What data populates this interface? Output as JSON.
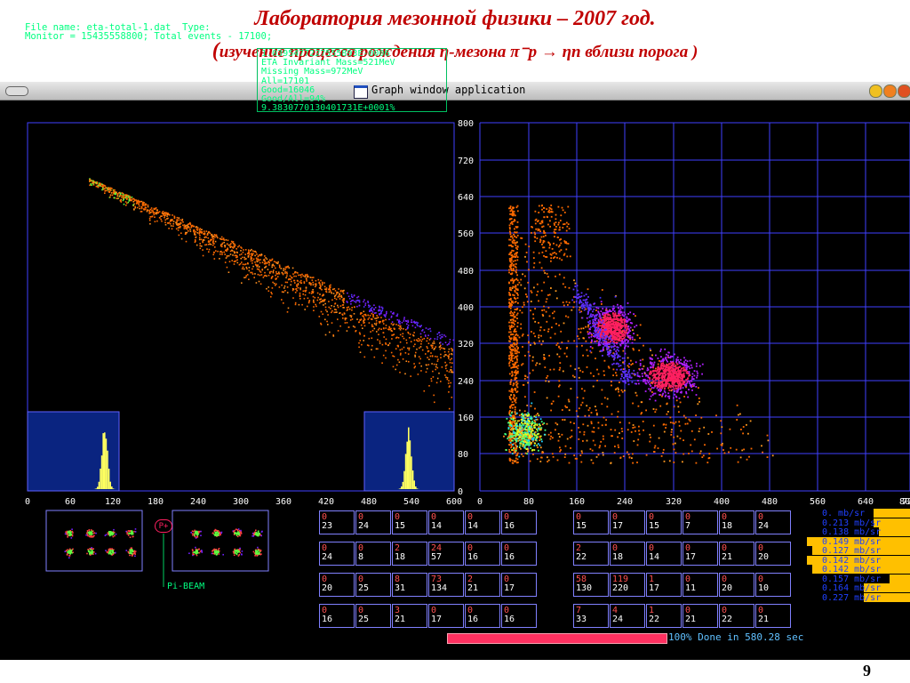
{
  "slide": {
    "title": "Лаборатория мезонной физики – 2007 год.",
    "subtitle_open": "(",
    "subtitle": "изучение  процесса  рождения  η-мезона  π⁻p → ηn  вблизи  порога )",
    "page_number": "9"
  },
  "window": {
    "title": "Graph window application"
  },
  "header_info": {
    "line1": "File name: eta-total-1.dat  Type:",
    "line2": "Monitor = 15435558800; Total events - 17100;"
  },
  "stats": {
    "lines": [
      "1.0395477227555893E-0006",
      "ETA Invariant Mass=521MeV",
      "Missing Mass=972MeV",
      "All=17101",
      "Good=16046",
      "Good/All=94%",
      "9.3830770130401731E+0001%"
    ]
  },
  "left_plot": {
    "x_ticks": [
      "0",
      "60",
      "120",
      "180",
      "240",
      "300",
      "360",
      "420",
      "480",
      "540",
      "600"
    ]
  },
  "right_plot": {
    "x_ticks": [
      "0",
      "80",
      "160",
      "240",
      "320",
      "400",
      "480",
      "560",
      "640",
      "720",
      "80"
    ],
    "y_ticks": [
      "800",
      "720",
      "640",
      "560",
      "480",
      "400",
      "320",
      "240",
      "160",
      "80",
      "0"
    ]
  },
  "tables": [
    {
      "name": "table-left",
      "rows": [
        [
          [
            "0",
            "23"
          ],
          [
            "0",
            "24"
          ],
          [
            "0",
            "15"
          ],
          [
            "0",
            "14"
          ],
          [
            "0",
            "14"
          ],
          [
            "0",
            "16"
          ]
        ],
        [
          [
            "0",
            "24"
          ],
          [
            "0",
            "8"
          ],
          [
            "2",
            "18"
          ],
          [
            "24",
            "57"
          ],
          [
            "0",
            "16"
          ],
          [
            "0",
            "16"
          ]
        ],
        [
          [
            "0",
            "20"
          ],
          [
            "0",
            "25"
          ],
          [
            "8",
            "31"
          ],
          [
            "73",
            "134"
          ],
          [
            "2",
            "21"
          ],
          [
            "0",
            "17"
          ]
        ],
        [
          [
            "0",
            "16"
          ],
          [
            "0",
            "25"
          ],
          [
            "3",
            "21"
          ],
          [
            "0",
            "17"
          ],
          [
            "0",
            "16"
          ],
          [
            "0",
            "16"
          ]
        ]
      ]
    },
    {
      "name": "table-right",
      "rows": [
        [
          [
            "0",
            "15"
          ],
          [
            "0",
            "17"
          ],
          [
            "0",
            "15"
          ],
          [
            "0",
            "7"
          ],
          [
            "0",
            "18"
          ],
          [
            "0",
            "24"
          ]
        ],
        [
          [
            "2",
            "22"
          ],
          [
            "0",
            "18"
          ],
          [
            "0",
            "14"
          ],
          [
            "0",
            "17"
          ],
          [
            "0",
            "21"
          ],
          [
            "0",
            "20"
          ]
        ],
        [
          [
            "58",
            "130"
          ],
          [
            "119",
            "220"
          ],
          [
            "1",
            "17"
          ],
          [
            "0",
            "11"
          ],
          [
            "0",
            "20"
          ],
          [
            "0",
            "10"
          ]
        ],
        [
          [
            "7",
            "33"
          ],
          [
            "4",
            "24"
          ],
          [
            "1",
            "22"
          ],
          [
            "0",
            "21"
          ],
          [
            "0",
            "22"
          ],
          [
            "0",
            "21"
          ]
        ]
      ]
    }
  ],
  "cross_sections": [
    {
      "value": "0.",
      "unit": "mb/sr",
      "bar": 0.35
    },
    {
      "value": "0.213",
      "unit": "mb/sr",
      "bar": 0.35
    },
    {
      "value": "0.138",
      "unit": "mb/sr",
      "bar": 0.3
    },
    {
      "value": "0.149",
      "unit": "mb/sr",
      "bar": 1.0
    },
    {
      "value": "0.127",
      "unit": "mb/sr",
      "bar": 0.95
    },
    {
      "value": "0.142",
      "unit": "mb/sr",
      "bar": 1.0
    },
    {
      "value": "0.142",
      "unit": "mb/sr",
      "bar": 0.95
    },
    {
      "value": "0.157",
      "unit": "mb/sr",
      "bar": 0.2
    },
    {
      "value": "0.164",
      "unit": "mb/sr",
      "bar": 0.45
    },
    {
      "value": "0.227",
      "unit": "mb/sr",
      "bar": 0.45
    }
  ],
  "beam": {
    "icon_label": "P+",
    "label": "Pi-BEAM"
  },
  "progress": {
    "fraction": 1.0,
    "text": "100% Done in 580.28 sec"
  },
  "colors": {
    "title_red": "#c00000",
    "axis_blue": "#4040ff",
    "text_green": "#00ff80",
    "progress_pink": "#ff3060"
  }
}
